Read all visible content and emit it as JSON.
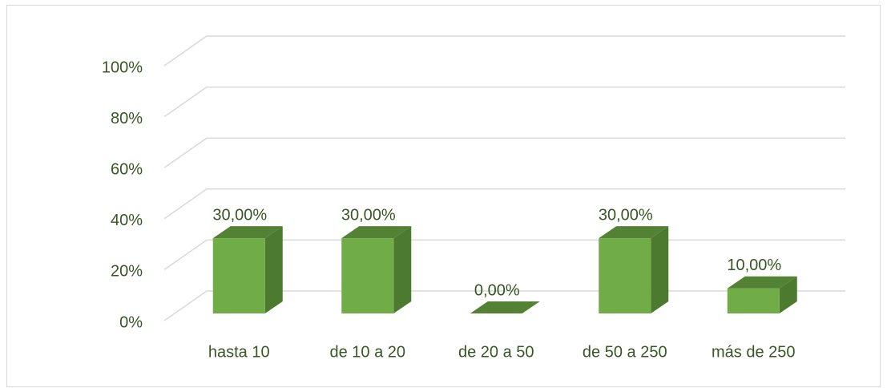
{
  "chart_data": {
    "type": "bar3d",
    "categories": [
      "hasta 10",
      "de 10 a 20",
      "de 20 a 50",
      "de 50 a 250",
      "más de 250"
    ],
    "values": [
      30,
      30,
      0,
      30,
      10
    ],
    "value_labels": [
      "30,00%",
      "30,00%",
      "0,00%",
      "30,00%",
      "10,00%"
    ],
    "color": "#70ad47",
    "ylim": [
      0,
      100
    ],
    "yticks": [
      {
        "value": 0,
        "label": "0%"
      },
      {
        "value": 20,
        "label": "20%"
      },
      {
        "value": 40,
        "label": "40%"
      },
      {
        "value": 60,
        "label": "60%"
      },
      {
        "value": 80,
        "label": "80%"
      },
      {
        "value": 100,
        "label": "100%"
      }
    ],
    "grid": true
  }
}
